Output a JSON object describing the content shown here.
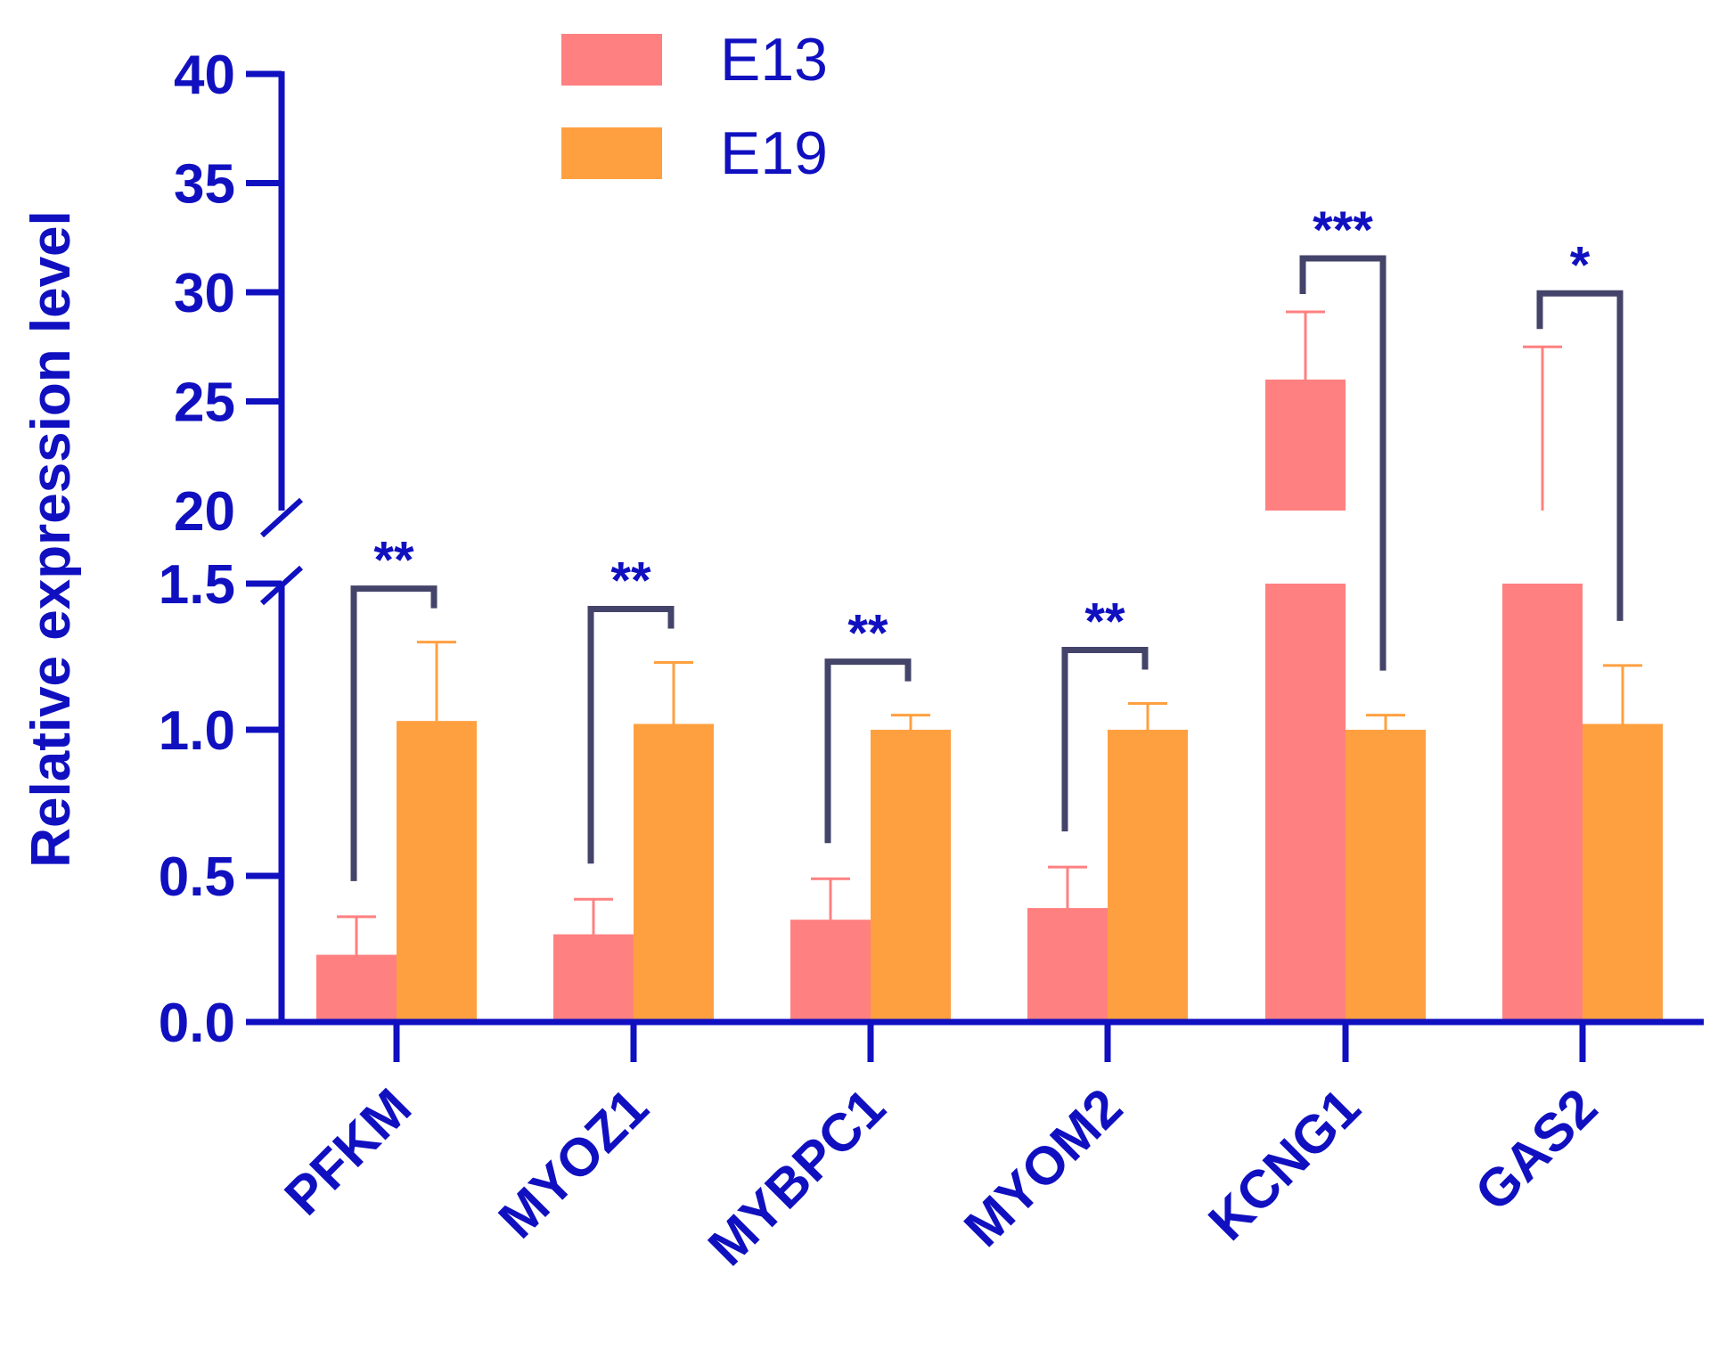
{
  "chart_data": {
    "type": "bar",
    "ylabel": "Relative expression level",
    "xlabel": "",
    "categories": [
      "PFKM",
      "MYOZ1",
      "MYBPC1",
      "MYOM2",
      "KCNG1",
      "GAS2"
    ],
    "series": [
      {
        "name": "E13",
        "color": "#FF8080",
        "values": [
          0.23,
          0.3,
          0.35,
          0.39,
          26.0,
          20.0
        ],
        "errors": [
          0.13,
          0.12,
          0.14,
          0.14,
          3.1,
          7.5
        ]
      },
      {
        "name": "E19",
        "color": "#FFA040",
        "values": [
          1.03,
          1.02,
          1.0,
          1.0,
          1.0,
          1.02
        ],
        "errors": [
          0.27,
          0.21,
          0.05,
          0.09,
          0.05,
          0.2
        ]
      }
    ],
    "y_axis": {
      "broken": true,
      "lower_range": [
        0,
        1.5
      ],
      "upper_range": [
        20,
        40
      ],
      "lower_ticks": [
        "0.0",
        "0.5",
        "1.0",
        "1.5"
      ],
      "upper_ticks": [
        "20",
        "25",
        "30",
        "35",
        "40"
      ]
    },
    "significance": [
      {
        "category": "PFKM",
        "label": "**"
      },
      {
        "category": "MYOZ1",
        "label": "**"
      },
      {
        "category": "MYBPC1",
        "label": "**"
      },
      {
        "category": "MYOM2",
        "label": "**"
      },
      {
        "category": "KCNG1",
        "label": "***"
      },
      {
        "category": "GAS2",
        "label": "*"
      }
    ],
    "legend_position": "top-center",
    "colors": {
      "axis": "#1010C0",
      "bracket": "#44446A"
    }
  }
}
